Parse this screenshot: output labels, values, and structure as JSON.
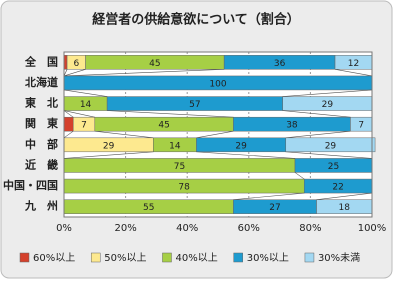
{
  "chart_data": {
    "type": "stacked-hbar",
    "title": "経営者の供給意欲について（割合）",
    "categories": [
      "全　国",
      "北海道",
      "東　北",
      "関　東",
      "中　部",
      "近　畿",
      "中国・四国",
      "九　州"
    ],
    "series": [
      {
        "name": "60%以上",
        "color": "#d4412c",
        "values": [
          1,
          0,
          0,
          3,
          0,
          0,
          0,
          0
        ]
      },
      {
        "name": "50%以上",
        "color": "#fde98f",
        "values": [
          6,
          0,
          0,
          7,
          29,
          0,
          0,
          0
        ]
      },
      {
        "name": "40%以上",
        "color": "#a6cf45",
        "values": [
          45,
          0,
          14,
          45,
          14,
          75,
          78,
          55
        ]
      },
      {
        "name": "30%以上",
        "color": "#1e9bcf",
        "values": [
          36,
          100,
          57,
          38,
          29,
          25,
          22,
          27
        ]
      },
      {
        "name": "30%未満",
        "color": "#a3d8f2",
        "values": [
          12,
          0,
          29,
          7,
          29,
          0,
          0,
          18
        ]
      }
    ],
    "xlim": [
      0,
      100
    ],
    "xticks": [
      {
        "value": 0,
        "label": "0%"
      },
      {
        "value": 20,
        "label": "20%"
      },
      {
        "value": 40,
        "label": "40%"
      },
      {
        "value": 60,
        "label": "60%"
      },
      {
        "value": 80,
        "label": "80%"
      },
      {
        "value": 100,
        "label": "100%"
      }
    ],
    "grid": true
  }
}
